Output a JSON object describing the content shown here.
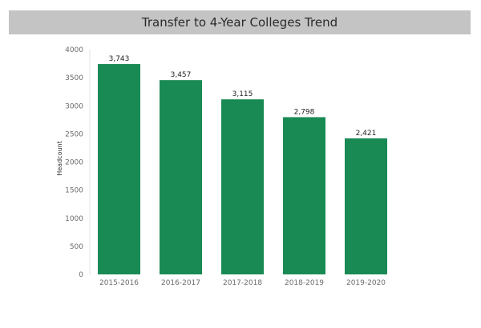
{
  "chart_data": {
    "type": "bar",
    "title": "Transfer to 4-Year Colleges Trend",
    "xlabel": "",
    "ylabel": "Headcount",
    "categories": [
      "2015-2016",
      "2016-2017",
      "2017-2018",
      "2018-2019",
      "2019-2020"
    ],
    "values": [
      3743,
      3457,
      3115,
      2798,
      2421
    ],
    "value_labels": [
      "3,743",
      "3,457",
      "3,115",
      "2,798",
      "2,421"
    ],
    "ylim": [
      0,
      4000
    ],
    "yticks": [
      0,
      500,
      1000,
      1500,
      2000,
      2500,
      3000,
      3500,
      4000
    ],
    "grid": false,
    "legend": "none",
    "colors": {
      "bar": "#1a8a55",
      "title_background": "#c4c4c4"
    }
  }
}
